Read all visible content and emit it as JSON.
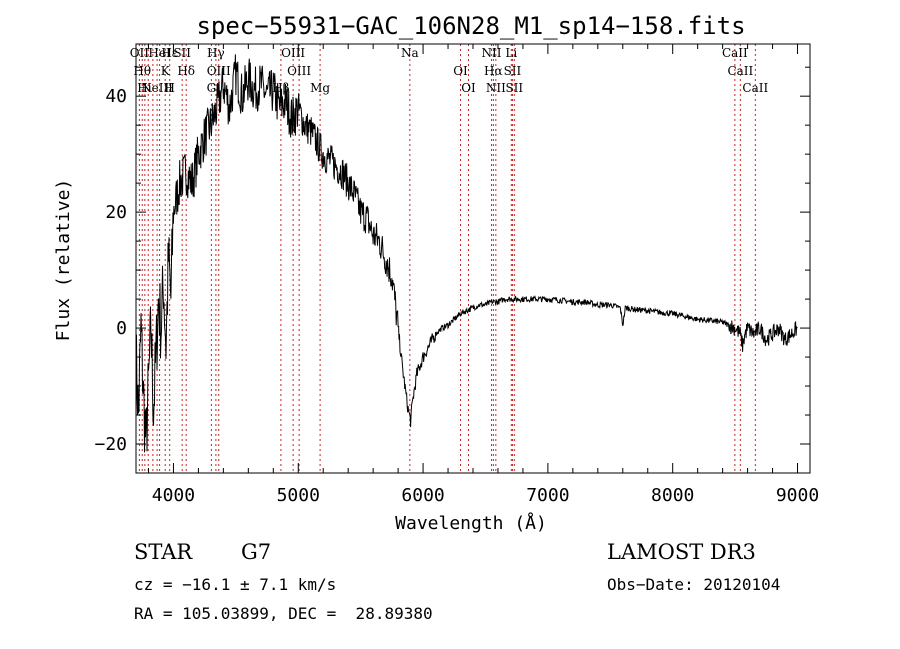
{
  "chart_data": {
    "type": "line",
    "title": "spec−55931−GAC_106N28_M1_sp14−158.fits",
    "xlabel": "Wavelength (Å)",
    "ylabel": "Flux (relative)",
    "xlim": [
      3700,
      9100
    ],
    "ylim": [
      -25,
      49
    ],
    "xticks": [
      4000,
      5000,
      6000,
      7000,
      8000,
      9000
    ],
    "xtick_labels": [
      "4000",
      "5000",
      "6000",
      "7000",
      "8000",
      "9000"
    ],
    "yticks": [
      -20,
      0,
      20,
      40
    ],
    "ytick_labels": [
      "−20",
      "0",
      "20",
      "40"
    ],
    "grid": false,
    "line_color": "#000000",
    "marker_color": "#cc2222",
    "series": [
      {
        "x": [
          3700,
          3720,
          3740,
          3760,
          3780,
          3800,
          3820,
          3840,
          3860,
          3880,
          3900,
          3920,
          3940,
          3960,
          3980,
          4000,
          4050,
          4100,
          4150,
          4200,
          4250,
          4300,
          4350,
          4400,
          4450,
          4500,
          4550,
          4600,
          4650,
          4700,
          4750,
          4800,
          4850,
          4900,
          4950,
          5000,
          5050,
          5100,
          5150,
          5200,
          5250,
          5300,
          5350,
          5400,
          5450,
          5500,
          5550,
          5600,
          5650,
          5700,
          5750,
          5800,
          5830,
          5860,
          5880,
          5900,
          5920,
          5950,
          6000,
          6050,
          6100,
          6150,
          6200,
          6250,
          6300,
          6350,
          6400,
          6450,
          6500,
          6550,
          6600,
          6650,
          6700,
          6750,
          6800,
          6850,
          6900,
          6950,
          7000,
          7100,
          7200,
          7300,
          7400,
          7500,
          7580,
          7600,
          7620,
          7700,
          7800,
          7900,
          8000,
          8100,
          8200,
          8300,
          8400,
          8450,
          8500,
          8540,
          8560,
          8580,
          8600,
          8650,
          8700,
          8750,
          8800,
          8850,
          8900,
          8950,
          9000
        ],
        "y": [
          -5,
          -15,
          0,
          -12,
          -20,
          -10,
          0,
          -14,
          -5,
          5,
          0,
          8,
          -3,
          12,
          5,
          20,
          25,
          27,
          25,
          30,
          33,
          35,
          38,
          42,
          38,
          44,
          40,
          43,
          41,
          42,
          40,
          41,
          38,
          39,
          36,
          38,
          35,
          34,
          32,
          30,
          29,
          28,
          27,
          25,
          23,
          20,
          19,
          16,
          15,
          12,
          9,
          0,
          -6,
          -11,
          -14,
          -16,
          -12,
          -8,
          -5,
          -3,
          -1,
          0,
          0.5,
          1.5,
          2.5,
          3,
          3.5,
          4,
          4,
          4.5,
          4.5,
          5,
          5,
          5,
          5,
          5,
          5,
          5,
          5,
          4.8,
          4.5,
          4.5,
          4,
          4,
          3.5,
          0.5,
          3.5,
          3.2,
          3,
          2.7,
          2.5,
          2,
          1.5,
          1.3,
          1,
          0.5,
          0,
          -1,
          -3,
          -1,
          0,
          -1,
          0,
          -2,
          -1,
          0,
          -2,
          -1,
          0
        ]
      }
    ],
    "lines": [
      {
        "x": 3727,
        "labels": [
          "OII"
        ]
      },
      {
        "x": 3750,
        "labels": [
          "Hθ"
        ]
      },
      {
        "x": 3771,
        "labels": [
          "Hι"
        ]
      },
      {
        "x": 3798,
        "labels": [
          ""
        ]
      },
      {
        "x": 3835,
        "labels": [
          ""
        ]
      },
      {
        "x": 3869,
        "labels": [
          "NeIII"
        ]
      },
      {
        "x": 3889,
        "labels": [
          "HeI"
        ]
      },
      {
        "x": 3934,
        "labels": [
          "K"
        ]
      },
      {
        "x": 3970,
        "labels": [
          "H",
          "Hε"
        ]
      },
      {
        "x": 4070,
        "labels": [
          "SII"
        ]
      },
      {
        "x": 4102,
        "labels": [
          "Hδ"
        ]
      },
      {
        "x": 4304,
        "labels": [
          "G"
        ]
      },
      {
        "x": 4340,
        "labels": [
          "Hγ"
        ]
      },
      {
        "x": 4363,
        "labels": [
          "OIII"
        ]
      },
      {
        "x": 4861,
        "labels": [
          "Hβ"
        ]
      },
      {
        "x": 4959,
        "labels": [
          "OIII"
        ]
      },
      {
        "x": 5007,
        "labels": [
          "OIII"
        ]
      },
      {
        "x": 5175,
        "labels": [
          "Mg"
        ]
      },
      {
        "x": 5894,
        "labels": [
          "Na"
        ]
      },
      {
        "x": 6300,
        "labels": [
          "OI"
        ]
      },
      {
        "x": 6364,
        "labels": [
          "OI"
        ]
      },
      {
        "x": 6548,
        "labels": [
          "NII"
        ]
      },
      {
        "x": 6563,
        "labels": [
          "Hα"
        ]
      },
      {
        "x": 6583,
        "labels": [
          "NII"
        ]
      },
      {
        "x": 6707,
        "labels": [
          "Li"
        ]
      },
      {
        "x": 6716,
        "labels": [
          "SII"
        ]
      },
      {
        "x": 6731,
        "labels": [
          "SII"
        ]
      },
      {
        "x": 8498,
        "labels": [
          "CaII"
        ]
      },
      {
        "x": 8542,
        "labels": [
          "CaII"
        ]
      },
      {
        "x": 8662,
        "labels": [
          "CaII"
        ]
      }
    ]
  },
  "info": {
    "class": "STAR",
    "subclass": "G7",
    "survey": "LAMOST DR3",
    "cz": "cz = −16.1 ± 7.1 km/s",
    "obs_date": "Obs−Date: 20120104",
    "radec": "RA = 105.03899, DEC =  28.89380"
  }
}
